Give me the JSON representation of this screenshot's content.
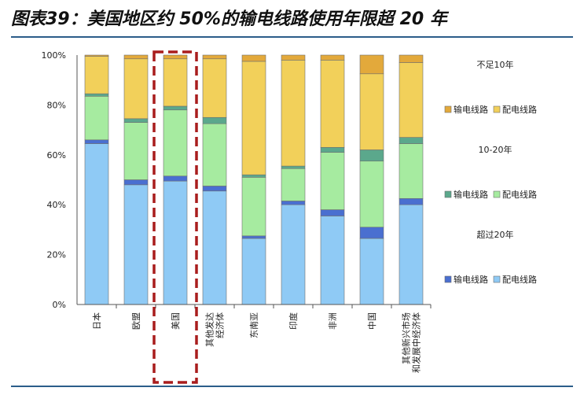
{
  "title": "图表39：美国地区约 50%的输电线路使用年限超 20 年",
  "colors": {
    "lt10_trans": "#E3A93B",
    "lt10_dist": "#F2D05A",
    "mid_trans": "#5BA88C",
    "mid_dist": "#A6EBA0",
    "gt20_trans": "#4A6FD0",
    "gt20_dist": "#8FCAF5",
    "highlight": "#A91D1D"
  },
  "legend": {
    "groups": [
      {
        "label": "不足10年",
        "items": [
          {
            "label": "输电线路",
            "color": "#E3A93B"
          },
          {
            "label": "配电线路",
            "color": "#F2D05A"
          }
        ]
      },
      {
        "label": "10-20年",
        "items": [
          {
            "label": "输电线路",
            "color": "#5BA88C"
          },
          {
            "label": "配电线路",
            "color": "#A6EBA0"
          }
        ]
      },
      {
        "label": "超过20年",
        "items": [
          {
            "label": "输电线路",
            "color": "#4A6FD0"
          },
          {
            "label": "配电线路",
            "color": "#8FCAF5"
          }
        ]
      }
    ]
  },
  "chart_data": {
    "type": "bar",
    "stacked": true,
    "title": "图表39：美国地区约 50%的输电线路使用年限超 20 年",
    "categories": [
      [
        "日本"
      ],
      [
        "欧盟"
      ],
      [
        "美国"
      ],
      [
        "其他发达",
        "经济体"
      ],
      [
        "东南亚"
      ],
      [
        "印度"
      ],
      [
        "非洲"
      ],
      [
        "中国"
      ],
      [
        "其他新兴市场",
        "和发展中经济体"
      ]
    ],
    "y_ticks": [
      "0%",
      "20%",
      "40%",
      "60%",
      "80%",
      "100%"
    ],
    "ylim": [
      0,
      100
    ],
    "highlight_category": "美国",
    "series": [
      {
        "group": "超过20年",
        "name": "配电线路",
        "color": "#8FCAF5",
        "values": [
          64.5,
          48,
          49.5,
          45.5,
          26.5,
          40,
          35.5,
          26.5,
          40
        ]
      },
      {
        "group": "超过20年",
        "name": "输电线路",
        "color": "#4A6FD0",
        "values": [
          1.5,
          2,
          2,
          2,
          1,
          1.5,
          2.5,
          4.5,
          2.5
        ]
      },
      {
        "group": "10-20年",
        "name": "配电线路",
        "color": "#A6EBA0",
        "values": [
          17.5,
          23,
          26.5,
          25,
          23.5,
          13,
          23,
          26.5,
          22
        ]
      },
      {
        "group": "10-20年",
        "name": "输电线路",
        "color": "#5BA88C",
        "values": [
          1,
          1.5,
          1.5,
          2.5,
          1,
          1,
          2,
          4.5,
          2.5
        ]
      },
      {
        "group": "不足10年",
        "name": "配电线路",
        "color": "#F2D05A",
        "values": [
          15,
          24,
          19,
          23.5,
          45.5,
          42.5,
          35,
          30.5,
          30
        ]
      },
      {
        "group": "不足10年",
        "name": "输电线路",
        "color": "#E3A93B",
        "values": [
          0.5,
          1.5,
          1.5,
          1.5,
          2.5,
          2,
          2,
          7.5,
          3
        ]
      }
    ]
  }
}
